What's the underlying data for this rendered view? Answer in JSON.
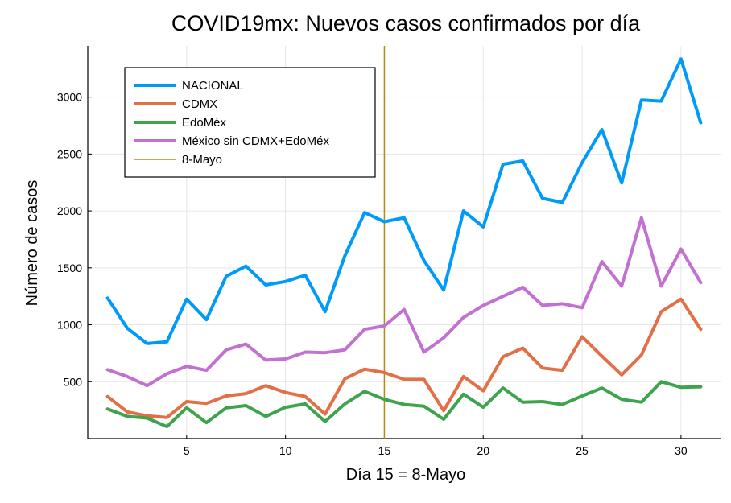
{
  "chart_data": {
    "type": "line",
    "title": "COVID19mx: Nuevos casos confirmados por día",
    "xlabel": "Día 15 = 8-Mayo",
    "ylabel": "Número de casos",
    "xlim": [
      0,
      32
    ],
    "ylim": [
      0,
      3450
    ],
    "xticks": [
      5,
      10,
      15,
      20,
      25,
      30
    ],
    "yticks": [
      500,
      1000,
      1500,
      2000,
      2500,
      3000
    ],
    "grid": true,
    "legend_position": "top-left",
    "x": [
      1,
      2,
      3,
      4,
      5,
      6,
      7,
      8,
      9,
      10,
      11,
      12,
      13,
      14,
      15,
      16,
      17,
      18,
      19,
      20,
      21,
      22,
      23,
      24,
      25,
      26,
      27,
      28,
      29,
      30,
      31
    ],
    "series": [
      {
        "name": "NACIONAL",
        "color": "#009AF9",
        "values": [
          1235,
          970,
          835,
          850,
          1225,
          1045,
          1425,
          1515,
          1350,
          1380,
          1435,
          1115,
          1605,
          1985,
          1905,
          1940,
          1565,
          1305,
          2000,
          1860,
          2410,
          2440,
          2110,
          2075,
          2425,
          2715,
          2245,
          2975,
          2965,
          3335,
          2775
        ]
      },
      {
        "name": "CDMX",
        "color": "#E26F46",
        "values": [
          370,
          235,
          200,
          185,
          325,
          310,
          375,
          395,
          465,
          405,
          370,
          215,
          525,
          610,
          580,
          520,
          520,
          245,
          545,
          420,
          720,
          795,
          620,
          600,
          895,
          725,
          560,
          735,
          1115,
          1225,
          960
        ]
      },
      {
        "name": "EdoMéx",
        "color": "#3DA44D",
        "values": [
          260,
          195,
          180,
          105,
          270,
          140,
          270,
          290,
          195,
          275,
          305,
          150,
          305,
          415,
          345,
          300,
          285,
          170,
          390,
          275,
          445,
          320,
          325,
          300,
          375,
          445,
          345,
          320,
          500,
          450,
          455
        ]
      },
      {
        "name": "México sin CDMX+EdoMéx",
        "color": "#C270D2",
        "values": [
          605,
          545,
          465,
          570,
          635,
          600,
          780,
          830,
          690,
          700,
          760,
          755,
          780,
          960,
          990,
          1135,
          760,
          885,
          1065,
          1170,
          1250,
          1330,
          1170,
          1185,
          1150,
          1555,
          1340,
          1940,
          1340,
          1665,
          1370
        ]
      }
    ],
    "vlines": [
      {
        "name": "8-Mayo",
        "x": 15,
        "color": "#AC8D18"
      }
    ]
  }
}
